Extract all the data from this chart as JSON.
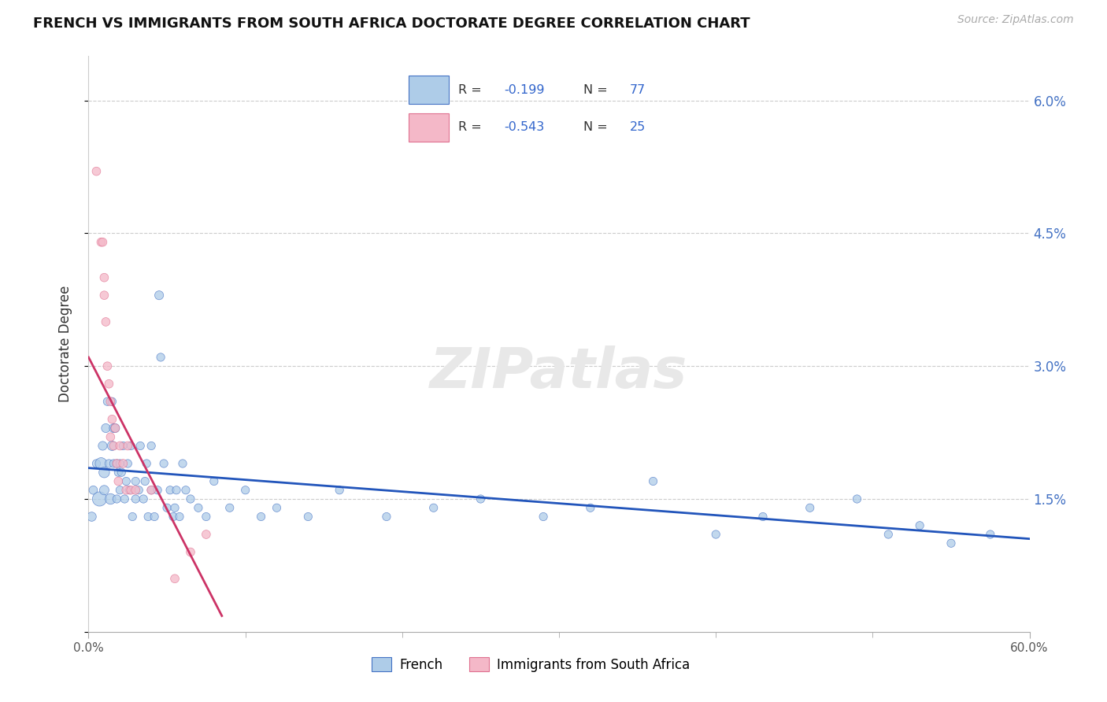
{
  "title": "FRENCH VS IMMIGRANTS FROM SOUTH AFRICA DOCTORATE DEGREE CORRELATION CHART",
  "source": "Source: ZipAtlas.com",
  "xlabel_french": "French",
  "xlabel_immigrants": "Immigrants from South Africa",
  "ylabel": "Doctorate Degree",
  "xlim": [
    0.0,
    0.6
  ],
  "ylim": [
    0.0,
    0.065
  ],
  "ytick_positions": [
    0.0,
    0.015,
    0.03,
    0.045,
    0.06
  ],
  "ytick_labels": [
    "",
    "1.5%",
    "3.0%",
    "4.5%",
    "6.0%"
  ],
  "xtick_major": [
    0.0,
    0.6
  ],
  "xtick_minor": [
    0.1,
    0.2,
    0.3,
    0.4,
    0.5
  ],
  "xtick_major_labels": [
    "0.0%",
    "60.0%"
  ],
  "french_color": "#aecce8",
  "french_edge_color": "#4472c4",
  "immigrants_color": "#f4b8c8",
  "immigrants_edge_color": "#e07090",
  "french_line_color": "#2255bb",
  "immigrants_line_color": "#cc3366",
  "legend_text_color": "#333333",
  "legend_value_color": "#3366cc",
  "french_R": "-0.199",
  "french_N": "77",
  "immigrants_R": "-0.543",
  "immigrants_N": "25",
  "french_scatter_x": [
    0.002,
    0.003,
    0.005,
    0.007,
    0.008,
    0.009,
    0.01,
    0.01,
    0.011,
    0.012,
    0.013,
    0.014,
    0.015,
    0.015,
    0.016,
    0.016,
    0.017,
    0.018,
    0.018,
    0.019,
    0.02,
    0.02,
    0.021,
    0.022,
    0.023,
    0.024,
    0.025,
    0.026,
    0.027,
    0.028,
    0.03,
    0.03,
    0.032,
    0.033,
    0.035,
    0.036,
    0.037,
    0.038,
    0.04,
    0.04,
    0.042,
    0.044,
    0.045,
    0.046,
    0.048,
    0.05,
    0.052,
    0.054,
    0.055,
    0.056,
    0.058,
    0.06,
    0.062,
    0.065,
    0.07,
    0.075,
    0.08,
    0.09,
    0.1,
    0.11,
    0.12,
    0.14,
    0.16,
    0.19,
    0.22,
    0.25,
    0.29,
    0.32,
    0.36,
    0.4,
    0.43,
    0.46,
    0.49,
    0.51,
    0.53,
    0.55,
    0.575
  ],
  "french_scatter_y": [
    0.013,
    0.016,
    0.019,
    0.015,
    0.019,
    0.021,
    0.016,
    0.018,
    0.023,
    0.026,
    0.019,
    0.015,
    0.026,
    0.021,
    0.023,
    0.019,
    0.023,
    0.015,
    0.019,
    0.018,
    0.016,
    0.019,
    0.018,
    0.021,
    0.015,
    0.017,
    0.019,
    0.016,
    0.021,
    0.013,
    0.015,
    0.017,
    0.016,
    0.021,
    0.015,
    0.017,
    0.019,
    0.013,
    0.016,
    0.021,
    0.013,
    0.016,
    0.038,
    0.031,
    0.019,
    0.014,
    0.016,
    0.013,
    0.014,
    0.016,
    0.013,
    0.019,
    0.016,
    0.015,
    0.014,
    0.013,
    0.017,
    0.014,
    0.016,
    0.013,
    0.014,
    0.013,
    0.016,
    0.013,
    0.014,
    0.015,
    0.013,
    0.014,
    0.017,
    0.011,
    0.013,
    0.014,
    0.015,
    0.011,
    0.012,
    0.01,
    0.011
  ],
  "french_scatter_sizes": [
    70,
    60,
    55,
    170,
    115,
    65,
    75,
    95,
    65,
    55,
    55,
    95,
    55,
    75,
    65,
    55,
    65,
    55,
    55,
    55,
    55,
    55,
    55,
    55,
    55,
    55,
    55,
    55,
    55,
    55,
    55,
    55,
    55,
    55,
    55,
    55,
    55,
    55,
    55,
    55,
    55,
    55,
    65,
    55,
    55,
    55,
    55,
    55,
    55,
    55,
    55,
    55,
    55,
    55,
    55,
    55,
    55,
    55,
    55,
    55,
    55,
    55,
    55,
    55,
    55,
    55,
    55,
    55,
    55,
    55,
    55,
    55,
    55,
    55,
    55,
    55,
    55
  ],
  "immigrants_scatter_x": [
    0.005,
    0.008,
    0.009,
    0.01,
    0.01,
    0.011,
    0.012,
    0.013,
    0.014,
    0.014,
    0.015,
    0.016,
    0.017,
    0.018,
    0.019,
    0.02,
    0.022,
    0.024,
    0.025,
    0.027,
    0.03,
    0.04,
    0.055,
    0.065,
    0.075
  ],
  "immigrants_scatter_y": [
    0.052,
    0.044,
    0.044,
    0.04,
    0.038,
    0.035,
    0.03,
    0.028,
    0.026,
    0.022,
    0.024,
    0.021,
    0.023,
    0.019,
    0.017,
    0.021,
    0.019,
    0.016,
    0.021,
    0.016,
    0.016,
    0.016,
    0.006,
    0.009,
    0.011
  ],
  "immigrants_scatter_sizes": [
    60,
    60,
    60,
    60,
    60,
    60,
    60,
    60,
    60,
    60,
    60,
    60,
    60,
    60,
    60,
    60,
    60,
    60,
    60,
    60,
    60,
    60,
    60,
    60,
    60
  ],
  "blue_trend_x0": 0.0,
  "blue_trend_y0": 0.0185,
  "blue_trend_x1": 0.6,
  "blue_trend_y1": 0.0105,
  "pink_trend_x0": 0.0,
  "pink_trend_y0": 0.031,
  "pink_trend_x1": 0.085,
  "pink_trend_y1": 0.0018,
  "grid_color": "#cccccc",
  "watermark_color": "#e8e8e8",
  "title_fontsize": 13,
  "source_fontsize": 10,
  "axis_label_fontsize": 12,
  "tick_fontsize": 11,
  "legend_fontsize": 12
}
